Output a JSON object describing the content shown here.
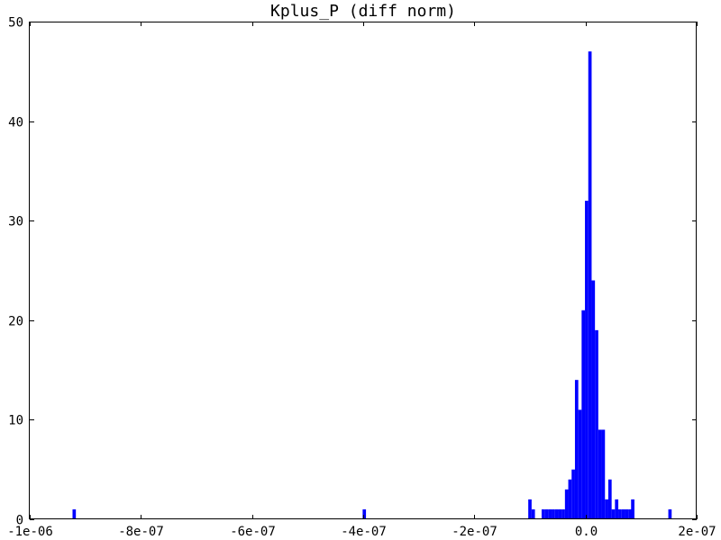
{
  "chart_data": {
    "type": "bar",
    "title": "Kplus_P (diff norm)",
    "xlabel": "",
    "ylabel": "",
    "xlim": [
      -1e-06,
      2e-07
    ],
    "ylim": [
      0,
      50
    ],
    "bin_width": 6e-09,
    "color": "#0000ff",
    "x_ticks": [
      {
        "value": -1e-06,
        "label": "-1e-06"
      },
      {
        "value": -8e-07,
        "label": "-8e-07"
      },
      {
        "value": -6e-07,
        "label": "-6e-07"
      },
      {
        "value": -4e-07,
        "label": "-4e-07"
      },
      {
        "value": -2e-07,
        "label": "-2e-07"
      },
      {
        "value": 0,
        "label": "0.0"
      },
      {
        "value": 2e-07,
        "label": "2e-07"
      }
    ],
    "y_ticks": [
      {
        "value": 0,
        "label": "0"
      },
      {
        "value": 10,
        "label": "10"
      },
      {
        "value": 20,
        "label": "20"
      },
      {
        "value": 30,
        "label": "30"
      },
      {
        "value": 40,
        "label": "40"
      },
      {
        "value": 50,
        "label": "50"
      }
    ],
    "bins": [
      {
        "x": -9.2e-07,
        "count": 1
      },
      {
        "x": -3.98e-07,
        "count": 1
      },
      {
        "x": -1e-07,
        "count": 2
      },
      {
        "x": -9.4e-08,
        "count": 1
      },
      {
        "x": -7.6e-08,
        "count": 1
      },
      {
        "x": -7e-08,
        "count": 1
      },
      {
        "x": -6.4e-08,
        "count": 1
      },
      {
        "x": -5.8e-08,
        "count": 1
      },
      {
        "x": -5.2e-08,
        "count": 1
      },
      {
        "x": -4.6e-08,
        "count": 1
      },
      {
        "x": -4e-08,
        "count": 1
      },
      {
        "x": -3.4e-08,
        "count": 3
      },
      {
        "x": -2.8e-08,
        "count": 4
      },
      {
        "x": -2.2e-08,
        "count": 5
      },
      {
        "x": -1.6e-08,
        "count": 14
      },
      {
        "x": -1e-08,
        "count": 11
      },
      {
        "x": -4e-09,
        "count": 21
      },
      {
        "x": 2e-09,
        "count": 32
      },
      {
        "x": 8e-09,
        "count": 47
      },
      {
        "x": 1.4e-08,
        "count": 24
      },
      {
        "x": 2e-08,
        "count": 19
      },
      {
        "x": 2.6e-08,
        "count": 9
      },
      {
        "x": 3.2e-08,
        "count": 9
      },
      {
        "x": 3.8e-08,
        "count": 2
      },
      {
        "x": 4.4e-08,
        "count": 4
      },
      {
        "x": 5e-08,
        "count": 1
      },
      {
        "x": 5.6e-08,
        "count": 2
      },
      {
        "x": 6.2e-08,
        "count": 1
      },
      {
        "x": 6.8e-08,
        "count": 1
      },
      {
        "x": 7.4e-08,
        "count": 1
      },
      {
        "x": 8e-08,
        "count": 1
      },
      {
        "x": 8e-08,
        "count": 0
      },
      {
        "x": 8.5e-08,
        "count": 2
      },
      {
        "x": 1.52e-07,
        "count": 1
      }
    ]
  }
}
